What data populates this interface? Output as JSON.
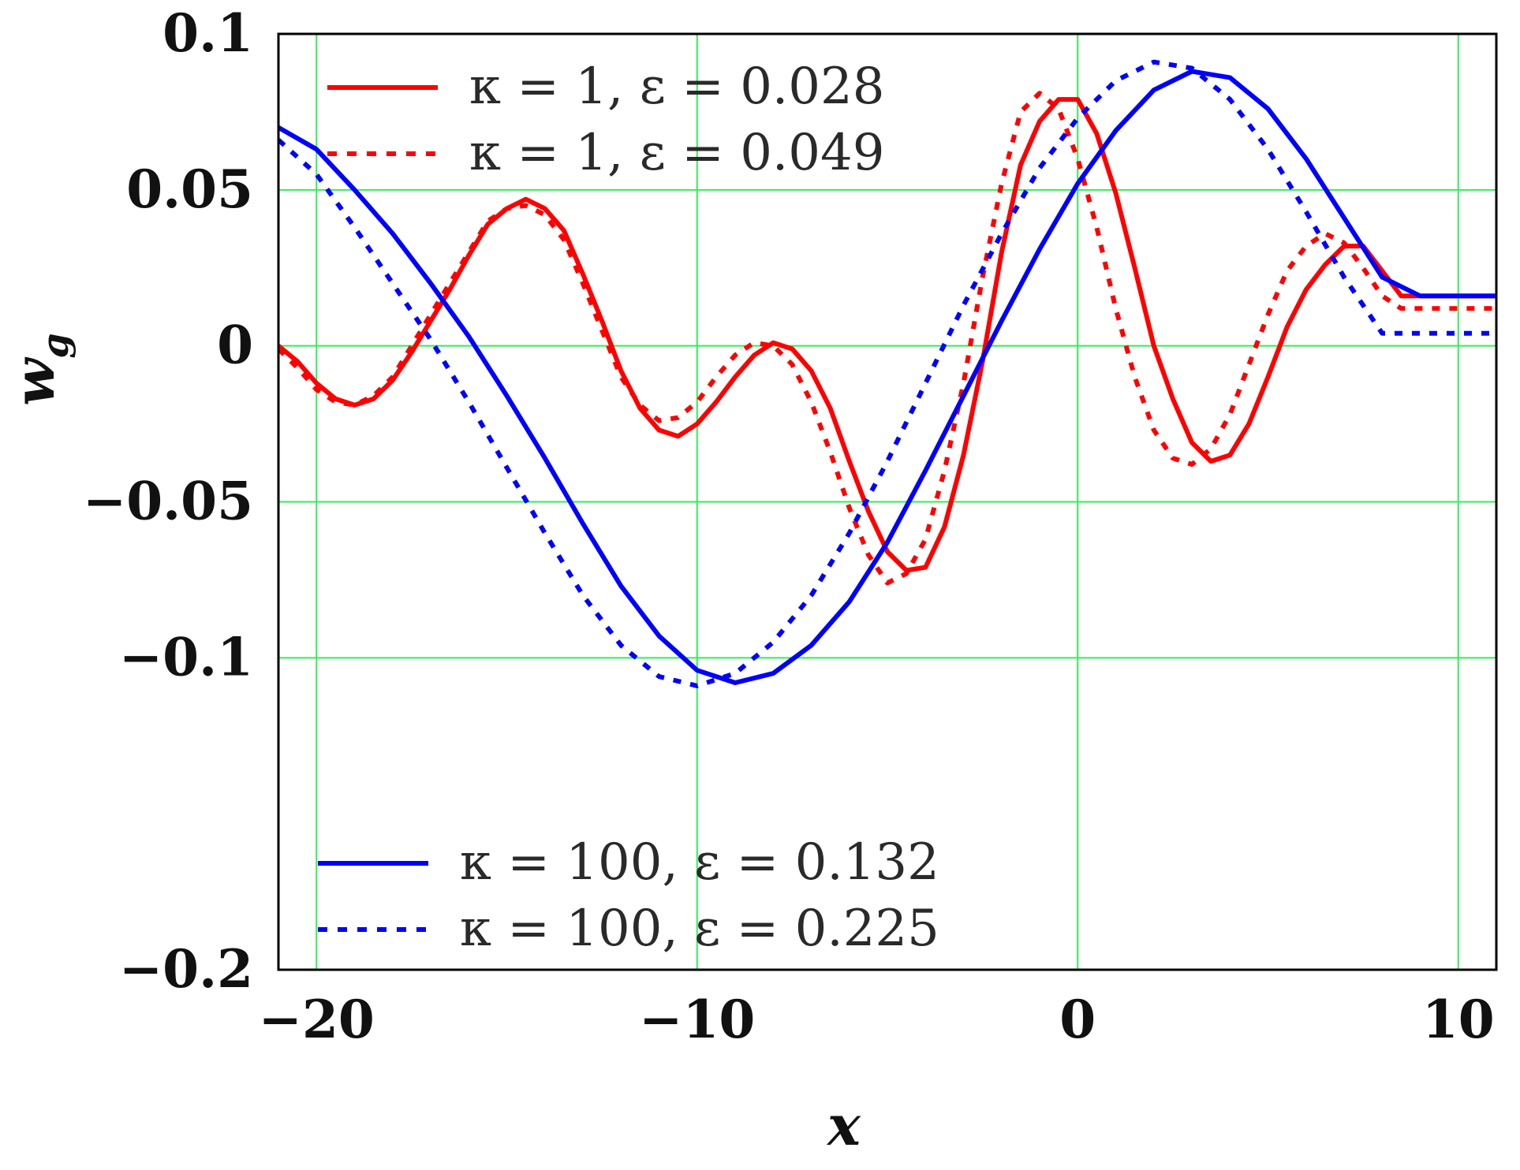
{
  "chart_data": {
    "type": "line",
    "xlabel": "x",
    "ylabel": "w",
    "ylabel_subscript": "g",
    "xlim": [
      -21,
      11
    ],
    "ylim": [
      -0.2,
      0.1
    ],
    "grid": true,
    "x_ticks": [
      {
        "value": -20,
        "label": "−20"
      },
      {
        "value": -10,
        "label": "−10"
      },
      {
        "value": 0,
        "label": "0"
      },
      {
        "value": 10,
        "label": "10"
      }
    ],
    "y_ticks": [
      {
        "value": 0.1,
        "label": "0.1"
      },
      {
        "value": 0.05,
        "label": "0.05"
      },
      {
        "value": 0,
        "label": "0"
      },
      {
        "value": -0.05,
        "label": "−0.05"
      },
      {
        "value": -0.1,
        "label": "−0.1"
      },
      {
        "value": -0.2,
        "label": "−0.2"
      }
    ],
    "series": [
      {
        "name": "κ = 1, ε = 0.028",
        "color": "#ff0000",
        "style": "solid",
        "legend_group": "top-left",
        "x": [
          -21,
          -20.5,
          -20,
          -19.5,
          -19,
          -18.5,
          -18,
          -17.5,
          -17,
          -16.5,
          -16,
          -15.5,
          -15,
          -14.5,
          -14,
          -13.5,
          -13,
          -12.5,
          -12,
          -11.5,
          -11,
          -10.5,
          -10,
          -9.5,
          -9,
          -8.5,
          -8,
          -7.5,
          -7,
          -6.5,
          -6,
          -5.5,
          -5,
          -4.5,
          -4,
          -3.5,
          -3,
          -2.5,
          -2,
          -1.5,
          -1,
          -0.5,
          0,
          0.5,
          1,
          1.5,
          2,
          2.5,
          3,
          3.5,
          4,
          4.5,
          5,
          5.5,
          6,
          6.5,
          7,
          7.5,
          8,
          8.5,
          9,
          9.5,
          10,
          10.5,
          11
        ],
        "y": [
          0.0,
          -0.005,
          -0.012,
          -0.017,
          -0.019,
          -0.017,
          -0.011,
          -0.002,
          0.008,
          0.018,
          0.029,
          0.039,
          0.044,
          0.047,
          0.044,
          0.037,
          0.023,
          0.008,
          -0.008,
          -0.02,
          -0.027,
          -0.029,
          -0.025,
          -0.018,
          -0.01,
          -0.003,
          0.001,
          -0.001,
          -0.008,
          -0.02,
          -0.037,
          -0.053,
          -0.066,
          -0.072,
          -0.071,
          -0.058,
          -0.035,
          -0.005,
          0.03,
          0.058,
          0.072,
          0.079,
          0.079,
          0.068,
          0.049,
          0.025,
          0.0,
          -0.017,
          -0.031,
          -0.037,
          -0.035,
          -0.025,
          -0.01,
          0.006,
          0.018,
          0.026,
          0.032,
          0.032,
          0.024,
          0.016,
          0.016,
          0.016,
          0.016,
          0.016,
          0.016
        ]
      },
      {
        "name": "κ = 1, ε = 0.049",
        "color": "#ff0000",
        "style": "dotted",
        "legend_group": "top-left",
        "x": [
          -21,
          -20.5,
          -20,
          -19.5,
          -19,
          -18.5,
          -18,
          -17.5,
          -17,
          -16.5,
          -16,
          -15.5,
          -15,
          -14.5,
          -14,
          -13.5,
          -13,
          -12.5,
          -12,
          -11.5,
          -11,
          -10.5,
          -10,
          -9.5,
          -9,
          -8.5,
          -8,
          -7.5,
          -7,
          -6.5,
          -6,
          -5.5,
          -5,
          -4.5,
          -4,
          -3.5,
          -3,
          -2.5,
          -2,
          -1.5,
          -1,
          -0.5,
          0,
          0.5,
          1,
          1.5,
          2,
          2.5,
          3,
          3.5,
          4,
          4.5,
          5,
          5.5,
          6,
          6.5,
          7,
          7.5,
          8,
          8.5,
          9,
          9.5,
          10,
          10.5,
          11
        ],
        "y": [
          -0.001,
          -0.007,
          -0.014,
          -0.018,
          -0.019,
          -0.016,
          -0.01,
          0.0,
          0.01,
          0.02,
          0.03,
          0.04,
          0.044,
          0.045,
          0.042,
          0.034,
          0.02,
          0.005,
          -0.01,
          -0.019,
          -0.024,
          -0.023,
          -0.018,
          -0.01,
          -0.003,
          0.001,
          0.0,
          -0.006,
          -0.018,
          -0.034,
          -0.052,
          -0.067,
          -0.076,
          -0.073,
          -0.062,
          -0.04,
          -0.012,
          0.022,
          0.052,
          0.075,
          0.081,
          0.076,
          0.06,
          0.038,
          0.012,
          -0.01,
          -0.027,
          -0.036,
          -0.038,
          -0.033,
          -0.022,
          -0.006,
          0.01,
          0.024,
          0.032,
          0.036,
          0.033,
          0.025,
          0.016,
          0.012,
          0.012,
          0.012,
          0.012,
          0.012,
          0.012
        ]
      },
      {
        "name": "κ = 100, ε = 0.132",
        "color": "#0000ff",
        "style": "solid",
        "legend_group": "bottom-left",
        "x": [
          -21,
          -20,
          -19,
          -18,
          -17,
          -16,
          -15,
          -14,
          -13,
          -12,
          -11,
          -10,
          -9,
          -8,
          -7,
          -6,
          -5,
          -4,
          -3,
          -2,
          -1,
          0,
          1,
          2,
          3,
          4,
          5,
          6,
          7,
          8,
          9,
          10,
          11
        ],
        "y": [
          0.07,
          0.063,
          0.05,
          0.036,
          0.02,
          0.003,
          -0.016,
          -0.036,
          -0.057,
          -0.077,
          -0.093,
          -0.104,
          -0.108,
          -0.105,
          -0.096,
          -0.082,
          -0.063,
          -0.04,
          -0.016,
          0.008,
          0.031,
          0.052,
          0.069,
          0.082,
          0.088,
          0.086,
          0.076,
          0.06,
          0.041,
          0.022,
          0.016,
          0.016,
          0.016
        ]
      },
      {
        "name": "κ = 100, ε = 0.225",
        "color": "#0000ff",
        "style": "dotted",
        "legend_group": "bottom-left",
        "x": [
          -21,
          -20,
          -19,
          -18,
          -17,
          -16,
          -15,
          -14,
          -13,
          -12,
          -11,
          -10,
          -9,
          -8,
          -7,
          -6,
          -5,
          -4,
          -3,
          -2,
          -1,
          0,
          1,
          2,
          3,
          4,
          5,
          6,
          7,
          8,
          9,
          10,
          11
        ],
        "y": [
          0.066,
          0.055,
          0.038,
          0.02,
          0.002,
          -0.018,
          -0.039,
          -0.06,
          -0.08,
          -0.096,
          -0.106,
          -0.109,
          -0.105,
          -0.095,
          -0.08,
          -0.06,
          -0.037,
          -0.012,
          0.013,
          0.036,
          0.057,
          0.073,
          0.085,
          0.091,
          0.089,
          0.079,
          0.063,
          0.043,
          0.022,
          0.004,
          0.004,
          0.004,
          0.004
        ]
      }
    ]
  }
}
